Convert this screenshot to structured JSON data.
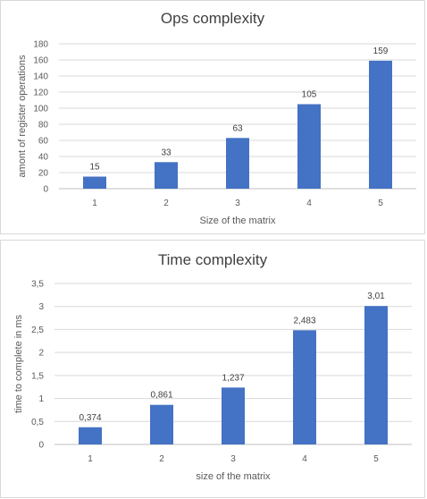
{
  "chart_data": [
    {
      "type": "bar",
      "title": "Ops complexity",
      "xlabel": "Size of the matrix",
      "ylabel": "amont of register operations",
      "categories": [
        "1",
        "2",
        "3",
        "4",
        "5"
      ],
      "values": [
        15,
        33,
        63,
        105,
        159
      ],
      "value_labels": [
        "15",
        "33",
        "63",
        "105",
        "159"
      ],
      "ylim": [
        0,
        180
      ],
      "yticks": [
        0,
        20,
        40,
        60,
        80,
        100,
        120,
        140,
        160,
        180
      ],
      "ytick_labels": [
        "0",
        "20",
        "40",
        "60",
        "80",
        "100",
        "120",
        "140",
        "160",
        "180"
      ],
      "grid": true,
      "bar_color": "#4472c4"
    },
    {
      "type": "bar",
      "title": "Time complexity",
      "xlabel": "size of the matrix",
      "ylabel": "time to complete in ms",
      "categories": [
        "1",
        "2",
        "3",
        "4",
        "5"
      ],
      "values": [
        0.374,
        0.861,
        1.237,
        2.483,
        3.01
      ],
      "value_labels": [
        "0,374",
        "0,861",
        "1,237",
        "2,483",
        "3,01"
      ],
      "ylim": [
        0,
        3.5
      ],
      "yticks": [
        0,
        0.5,
        1,
        1.5,
        2,
        2.5,
        3,
        3.5
      ],
      "ytick_labels": [
        "0",
        "0,5",
        "1",
        "1,5",
        "2",
        "2,5",
        "3",
        "3,5"
      ],
      "grid": true,
      "bar_color": "#4472c4"
    }
  ]
}
